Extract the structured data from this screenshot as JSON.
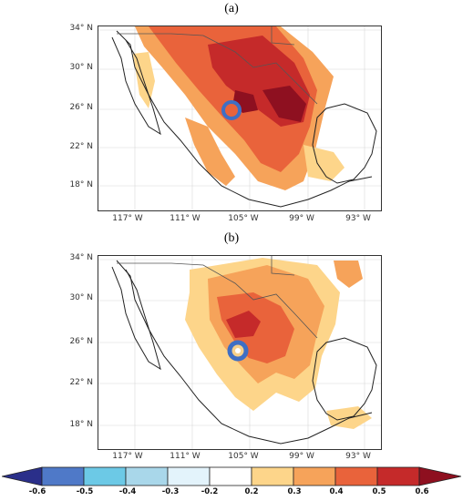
{
  "panels": [
    {
      "label": "(a)",
      "lat_ticks": [
        "34° N",
        "30° N",
        "26° N",
        "22° N",
        "18° N"
      ],
      "lon_ticks": [
        "117° W",
        "111° W",
        "105° W",
        "99° W",
        "93° W"
      ],
      "marker_style": "solid-ring"
    },
    {
      "label": "(b)",
      "lat_ticks": [
        "34° N",
        "30° N",
        "26° N",
        "22° N",
        "18° N"
      ],
      "lon_ticks": [
        "117° W",
        "111° W",
        "105° W",
        "99° W",
        "93° W"
      ],
      "marker_style": "ring-with-yellow-center"
    }
  ],
  "colorbar": {
    "ticks": [
      "-0.6",
      "-0.5",
      "-0.4",
      "-0.3",
      "-0.2",
      "0.2",
      "0.3",
      "0.4",
      "0.5",
      "0.6"
    ],
    "colors": [
      "#2f3ea8",
      "#4f79c8",
      "#6cc9e6",
      "#a9d7ea",
      "#e3f3fb",
      "#ffffff",
      "#fdd58a",
      "#f6a35a",
      "#e9633b",
      "#c52a2a",
      "#8e1020"
    ],
    "min_arrow_color": "#2a2f8a",
    "max_arrow_color": "#8e0f1f"
  },
  "map_colors": {
    "land": "#ffffff",
    "coast": "#222222",
    "border": "#555555",
    "marker": "#3f6fc4",
    "marker_center_b": "#f7d08a"
  }
}
